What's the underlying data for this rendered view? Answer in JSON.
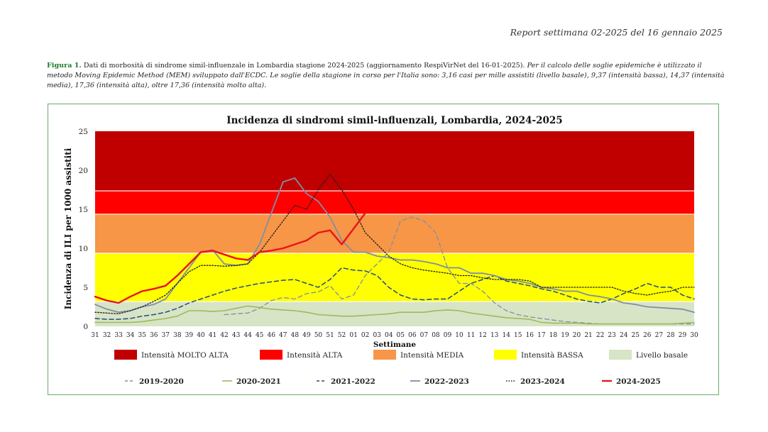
{
  "report_header": "Report settimana 02-2025 del 16 gennaio 2025",
  "caption": {
    "figure_label": "Figura 1.",
    "main": " Dati di morbosità di sindrome simil-influenzale in Lombardia stagione 2024-2025 (aggiornamento RespiVirNet del 16-01-2025).",
    "italic": " Per il calcolo delle soglie epidemiche è utilizzato il metodo Moving Epidemic Method (MEM) sviluppato dall'ECDC. Le soglie della stagione in corso per l'Italia sono: 3,16 casi per mille assistiti (livello basale), 9,37 (intensità bassa), 14,37 (intensità media), 17,36 (intensità alta), oltre 17,36 (intensità molto alta)."
  },
  "chart_data": {
    "type": "line",
    "title": "Incidenza di sindromi simil-influenzali, Lombardia, 2024-2025",
    "xlabel": "Settimane",
    "ylabel": "Incidenza di ILI per 1000 assistiti",
    "ylim": [
      0,
      25
    ],
    "yticks": [
      0,
      5,
      10,
      15,
      20,
      25
    ],
    "categories": [
      "31",
      "32",
      "33",
      "34",
      "35",
      "36",
      "37",
      "38",
      "39",
      "40",
      "41",
      "42",
      "43",
      "44",
      "45",
      "46",
      "47",
      "48",
      "49",
      "50",
      "51",
      "52",
      "01",
      "02",
      "03",
      "04",
      "05",
      "06",
      "07",
      "08",
      "09",
      "10",
      "11",
      "12",
      "13",
      "14",
      "15",
      "16",
      "17",
      "18",
      "19",
      "20",
      "21",
      "22",
      "23",
      "24",
      "25",
      "26",
      "27",
      "28",
      "29",
      "30"
    ],
    "bands": [
      {
        "name": "Livello basale",
        "from": 0,
        "to": 3.16,
        "color": "#d8e4c6"
      },
      {
        "name": "Intensità BASSA",
        "from": 3.16,
        "to": 9.37,
        "color": "#ffff00"
      },
      {
        "name": "Intensità MEDIA",
        "from": 9.37,
        "to": 14.37,
        "color": "#f79646"
      },
      {
        "name": "Intensità ALTA",
        "from": 14.37,
        "to": 17.36,
        "color": "#ff0000"
      },
      {
        "name": "Intensità MOLTO ALTA",
        "from": 17.36,
        "to": 25,
        "color": "#c00000"
      }
    ],
    "band_legend": [
      {
        "label": "Intensità MOLTO ALTA",
        "color": "#c00000"
      },
      {
        "label": "Intensità ALTA",
        "color": "#ff0000"
      },
      {
        "label": "Intensità MEDIA",
        "color": "#f79646"
      },
      {
        "label": "Intensità BASSA",
        "color": "#ffff00"
      },
      {
        "label": "Livello basale",
        "color": "#d8e4c6"
      }
    ],
    "series": [
      {
        "name": "2019-2020",
        "color": "#7f8fa6",
        "dash": "dashed",
        "width": 1.3,
        "values": [
          null,
          null,
          null,
          null,
          null,
          null,
          null,
          null,
          null,
          null,
          null,
          1.5,
          1.6,
          1.7,
          2.3,
          3.3,
          3.7,
          3.5,
          4.2,
          4.4,
          5.2,
          3.5,
          4.0,
          6.5,
          8.0,
          9.5,
          13.5,
          14.0,
          13.5,
          12.0,
          7.5,
          5.5,
          5.5,
          4.5,
          3.0,
          2.0,
          1.5,
          1.2,
          1.0,
          0.8,
          0.6,
          0.5,
          0.4,
          0.3,
          0.3,
          0.3,
          0.3,
          0.3,
          0.3,
          0.3,
          0.3,
          0.3
        ]
      },
      {
        "name": "2020-2021",
        "color": "#9bbb59",
        "dash": "solid",
        "width": 1.6,
        "values": [
          0.5,
          0.5,
          0.5,
          0.5,
          0.6,
          0.8,
          1.0,
          1.3,
          2.0,
          2.0,
          1.9,
          2.0,
          2.3,
          2.6,
          2.4,
          2.2,
          2.1,
          2.0,
          1.8,
          1.5,
          1.4,
          1.3,
          1.3,
          1.4,
          1.5,
          1.6,
          1.8,
          1.8,
          1.8,
          2.0,
          2.1,
          2.0,
          1.7,
          1.5,
          1.3,
          1.1,
          1.0,
          0.9,
          0.5,
          0.4,
          0.4,
          0.4,
          0.3,
          0.3,
          0.3,
          0.3,
          0.3,
          0.3,
          0.3,
          0.3,
          0.4,
          0.5
        ]
      },
      {
        "name": "2021-2022",
        "color": "#1f4e79",
        "dash": "dashed",
        "width": 1.5,
        "values": [
          1.0,
          0.9,
          0.9,
          1.0,
          1.3,
          1.5,
          1.8,
          2.3,
          3.0,
          3.5,
          4.0,
          4.5,
          4.9,
          5.2,
          5.5,
          5.7,
          5.9,
          6.0,
          5.5,
          5.0,
          6.0,
          7.5,
          7.2,
          7.1,
          6.5,
          5.0,
          4.0,
          3.5,
          3.4,
          3.5,
          3.5,
          4.5,
          5.5,
          6.0,
          6.5,
          5.8,
          5.5,
          5.2,
          4.8,
          4.5,
          4.0,
          3.5,
          3.2,
          3.0,
          3.5,
          4.2,
          4.8,
          5.5,
          5.0,
          5.0,
          4.0,
          3.5
        ]
      },
      {
        "name": "2022-2023",
        "color": "#7f8fa6",
        "dash": "solid",
        "width": 1.8,
        "values": [
          2.8,
          2.2,
          1.8,
          2.0,
          2.5,
          2.8,
          3.5,
          5.5,
          7.5,
          9.5,
          9.8,
          8.0,
          7.8,
          8.0,
          10.5,
          14.5,
          18.5,
          19.0,
          17.0,
          16.0,
          14.0,
          11.0,
          9.5,
          9.5,
          9.0,
          8.8,
          8.5,
          8.5,
          8.3,
          8.0,
          7.5,
          7.5,
          6.8,
          6.8,
          6.5,
          6.0,
          5.8,
          5.5,
          5.0,
          4.8,
          4.5,
          4.5,
          4.0,
          3.8,
          3.5,
          3.0,
          2.8,
          2.5,
          2.4,
          2.3,
          2.2,
          1.8
        ]
      },
      {
        "name": "2023-2024",
        "color": "#1f1f1f",
        "dash": "dotted",
        "width": 1.3,
        "values": [
          1.8,
          1.7,
          1.6,
          2.0,
          2.5,
          3.2,
          4.0,
          5.5,
          7.0,
          7.8,
          7.8,
          7.7,
          7.8,
          8.0,
          9.5,
          11.5,
          13.5,
          15.5,
          15.0,
          17.5,
          19.5,
          17.5,
          15.0,
          12.0,
          10.5,
          9.0,
          8.0,
          7.5,
          7.2,
          7.0,
          6.8,
          6.5,
          6.5,
          6.2,
          6.0,
          6.0,
          6.0,
          5.8,
          5.0,
          5.0,
          5.0,
          5.0,
          5.0,
          5.0,
          5.0,
          4.5,
          4.2,
          4.0,
          4.3,
          4.5,
          5.0,
          5.0
        ]
      },
      {
        "name": "2024-2025",
        "color": "#e8141c",
        "dash": "solid",
        "width": 2.4,
        "values": [
          3.8,
          3.3,
          3.0,
          3.8,
          4.5,
          4.8,
          5.2,
          6.5,
          8.0,
          9.5,
          9.7,
          9.2,
          8.7,
          8.5,
          9.5,
          9.7,
          10.0,
          10.5,
          11.0,
          12.0,
          12.3,
          10.5,
          12.5,
          14.5,
          null,
          null,
          null,
          null,
          null,
          null,
          null,
          null,
          null,
          null,
          null,
          null,
          null,
          null,
          null,
          null,
          null,
          null,
          null,
          null,
          null,
          null,
          null,
          null,
          null,
          null,
          null,
          null
        ]
      }
    ]
  }
}
